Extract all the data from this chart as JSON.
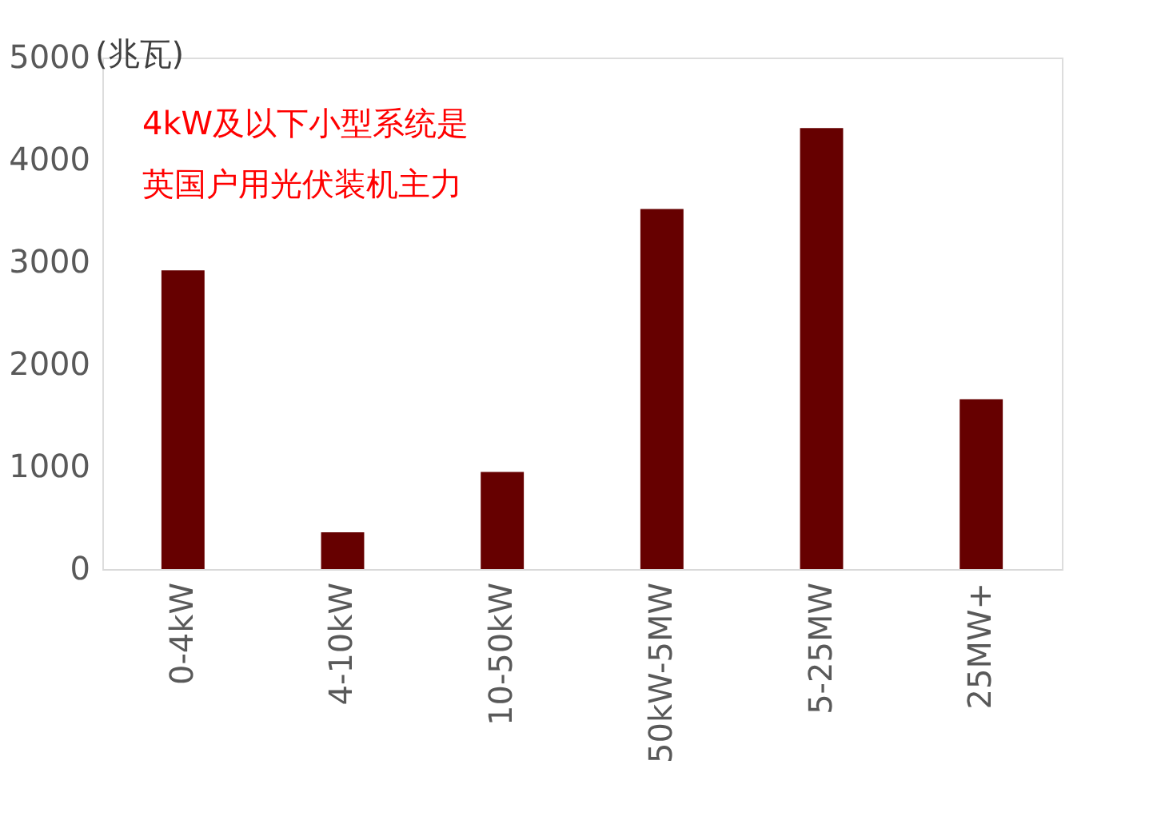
{
  "chart_data": {
    "type": "bar",
    "ylabel": "(兆瓦)",
    "annotations": [
      "4kW及以下小型系统是",
      "英国户用光伏装机主力"
    ],
    "categories": [
      "0-4kW",
      "4-10kW",
      "10-50kW",
      "50kW-5MW",
      "5-25MW",
      "25MW+"
    ],
    "values": [
      2920,
      360,
      950,
      3520,
      4310,
      1660
    ],
    "color": "#660000",
    "ylim": [
      0,
      5000
    ],
    "yticks": [
      0,
      1000,
      2000,
      3000,
      4000,
      5000
    ],
    "grid": false
  }
}
